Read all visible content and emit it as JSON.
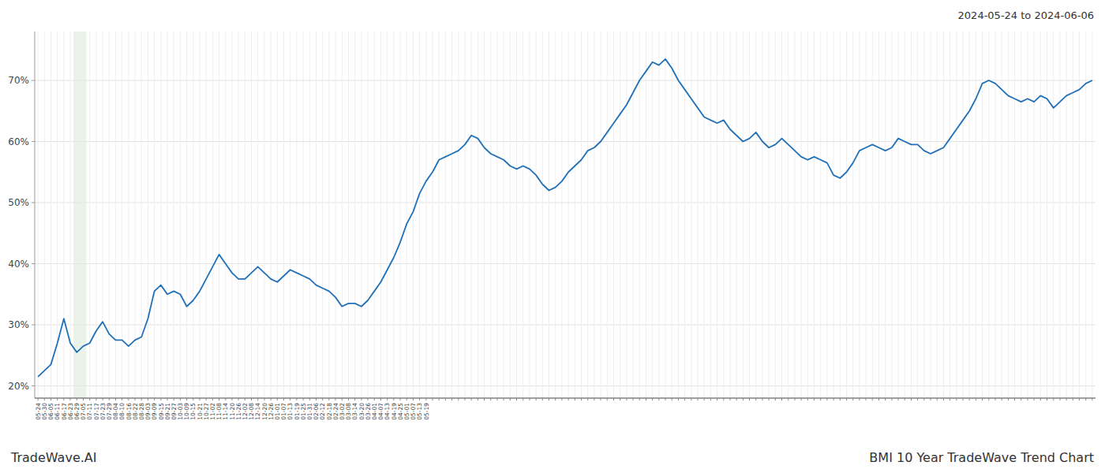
{
  "chart_data": {
    "type": "line",
    "title": "BMI 10 Year TradeWave Trend Chart",
    "subtitle": "2024-05-24 to 2024-06-06",
    "annotations": [
      "TradeWave.AI"
    ],
    "color": "#2070b8",
    "grid": true,
    "highlight": {
      "from": "06-29",
      "to": "07-05",
      "color": "#d4e8d0"
    },
    "ylim": [
      18,
      78
    ],
    "yticks": [
      {
        "value": 20,
        "label": "20%"
      },
      {
        "value": 30,
        "label": "30%"
      },
      {
        "value": 40,
        "label": "40%"
      },
      {
        "value": 50,
        "label": "50%"
      },
      {
        "value": 60,
        "label": "60%"
      },
      {
        "value": 70,
        "label": "70%"
      }
    ],
    "categories": [
      "05-24",
      "05-30",
      "06-05",
      "06-11",
      "06-17",
      "06-23",
      "06-29",
      "07-05",
      "07-11",
      "07-17",
      "07-23",
      "07-29",
      "08-04",
      "08-10",
      "08-16",
      "08-22",
      "08-28",
      "09-03",
      "09-09",
      "09-15",
      "09-21",
      "09-27",
      "10-03",
      "10-09",
      "10-15",
      "10-21",
      "10-27",
      "11-02",
      "11-08",
      "11-14",
      "11-20",
      "11-26",
      "12-02",
      "12-08",
      "12-14",
      "12-20",
      "12-26",
      "01-01",
      "01-07",
      "01-13",
      "01-19",
      "01-25",
      "01-31",
      "02-06",
      "02-12",
      "02-18",
      "02-24",
      "03-02",
      "03-08",
      "03-14",
      "03-20",
      "03-26",
      "04-01",
      "04-07",
      "04-13",
      "04-19",
      "04-25",
      "05-01",
      "05-07",
      "05-13",
      "05-19",
      null,
      null,
      null,
      null,
      null,
      null,
      null,
      null,
      null,
      null,
      null,
      null,
      null,
      null,
      null,
      null,
      null,
      null,
      null,
      null,
      null,
      null,
      null,
      null,
      null,
      null,
      null,
      null,
      null,
      null,
      null,
      null,
      null,
      null,
      null,
      null,
      null,
      null,
      null,
      null,
      null,
      null,
      null,
      null,
      null,
      null,
      null,
      null,
      null,
      null,
      null,
      null,
      null,
      null,
      null,
      null,
      null,
      null,
      null,
      null,
      null,
      null,
      null,
      null,
      null,
      null,
      null,
      null,
      null,
      null,
      null,
      null,
      null,
      null,
      null,
      null,
      null,
      null,
      null,
      null,
      null,
      null,
      null,
      null,
      null,
      null,
      null,
      null,
      null,
      null,
      null,
      null,
      null,
      null,
      null,
      null,
      null,
      null,
      null,
      null,
      null,
      null,
      null
    ],
    "values": [
      21.5,
      22.5,
      23.5,
      27.0,
      31.0,
      27.0,
      25.5,
      26.5,
      27.0,
      29.0,
      30.5,
      28.5,
      27.5,
      27.5,
      26.5,
      27.5,
      28.0,
      31.0,
      35.5,
      36.5,
      35.0,
      35.5,
      35.0,
      33.0,
      34.0,
      35.5,
      37.5,
      39.5,
      41.5,
      40.0,
      38.5,
      37.5,
      37.5,
      38.5,
      39.5,
      38.5,
      37.5,
      37.0,
      38.0,
      39.0,
      38.5,
      38.0,
      37.5,
      36.5,
      36.0,
      35.5,
      34.5,
      33.0,
      33.5,
      33.5,
      33.0,
      34.0,
      35.5,
      37.0,
      39.0,
      41.0,
      43.5,
      46.5,
      48.5,
      51.5,
      53.5,
      55.0,
      57.0,
      57.5,
      58.0,
      58.5,
      59.5,
      61.0,
      60.5,
      59.0,
      58.0,
      57.5,
      57.0,
      56.0,
      55.5,
      56.0,
      55.5,
      54.5,
      53.0,
      52.0,
      52.5,
      53.5,
      55.0,
      56.0,
      57.0,
      58.5,
      59.0,
      60.0,
      61.5,
      63.0,
      64.5,
      66.0,
      68.0,
      70.0,
      71.5,
      73.0,
      72.5,
      73.5,
      72.0,
      70.0,
      68.5,
      67.0,
      65.5,
      64.0,
      63.5,
      63.0,
      63.5,
      62.0,
      61.0,
      60.0,
      60.5,
      61.5,
      60.0,
      59.0,
      59.5,
      60.5,
      59.5,
      58.5,
      57.5,
      57.0,
      57.5,
      57.0,
      56.5,
      54.5,
      54.0,
      55.0,
      56.5,
      58.5,
      59.0,
      59.5,
      59.0,
      58.5,
      59.0,
      60.5,
      60.0,
      59.5,
      59.5,
      58.5,
      58.0,
      58.5,
      59.0,
      60.5,
      62.0,
      63.5,
      65.0,
      67.0,
      69.5,
      70.0,
      69.5,
      68.5,
      67.5,
      67.0,
      66.5,
      67.0,
      66.5,
      67.5,
      67.0,
      65.5,
      66.5,
      67.5,
      68.0,
      68.5,
      69.5,
      70.0
    ]
  }
}
